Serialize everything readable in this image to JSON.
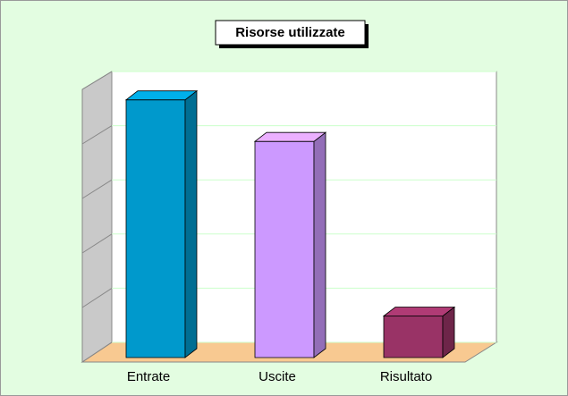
{
  "chart_data": {
    "type": "bar3d",
    "title": "Risorse utilizzate",
    "categories": [
      "Entrate",
      "Uscite",
      "Risultato"
    ],
    "values": [
      93,
      78,
      15
    ],
    "colors": [
      "#0099cc",
      "#cc99ff",
      "#993366"
    ],
    "ylim": [
      0,
      100
    ],
    "yticks": [
      0,
      20,
      40,
      60,
      80,
      100
    ],
    "grid": true
  }
}
